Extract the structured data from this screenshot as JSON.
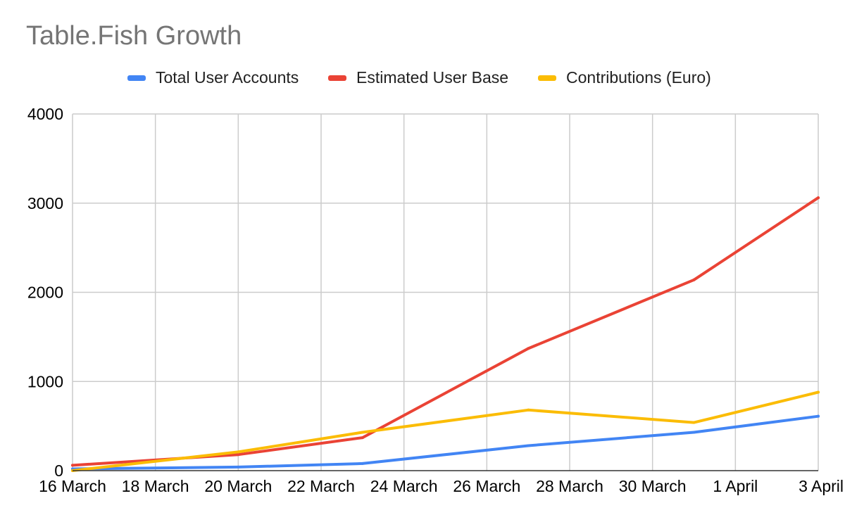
{
  "chart_data": {
    "type": "line",
    "title": "Table.Fish Growth",
    "xlabel": "",
    "ylabel": "",
    "x_tick_labels": [
      "16 March",
      "18 March",
      "20 March",
      "22 March",
      "24 March",
      "26 March",
      "28 March",
      "30 March",
      "1 April",
      "3 April"
    ],
    "x_tick_days": [
      0,
      2,
      4,
      6,
      8,
      10,
      12,
      14,
      16,
      18
    ],
    "xlim_days": [
      0,
      18
    ],
    "x_days": [
      0,
      4,
      7,
      11,
      15,
      18
    ],
    "x": [
      "16 March",
      "20 March",
      "23 March",
      "27 March",
      "31 March",
      "3 April"
    ],
    "ylim": [
      0,
      4000
    ],
    "y_ticks": [
      0,
      1000,
      2000,
      3000,
      4000
    ],
    "y_tick_labels": [
      "0",
      "1000",
      "2000",
      "3000",
      "4000"
    ],
    "grid": true,
    "legend_position": "top",
    "series": [
      {
        "name": "Total User Accounts",
        "color": "#4285f4",
        "values": [
          20,
          40,
          80,
          280,
          430,
          610
        ]
      },
      {
        "name": "Estimated User Base",
        "color": "#ea4335",
        "values": [
          60,
          180,
          370,
          1370,
          2140,
          3060
        ]
      },
      {
        "name": "Contributions (Euro)",
        "color": "#fbbc04",
        "values": [
          0,
          210,
          430,
          680,
          540,
          880
        ]
      }
    ]
  }
}
